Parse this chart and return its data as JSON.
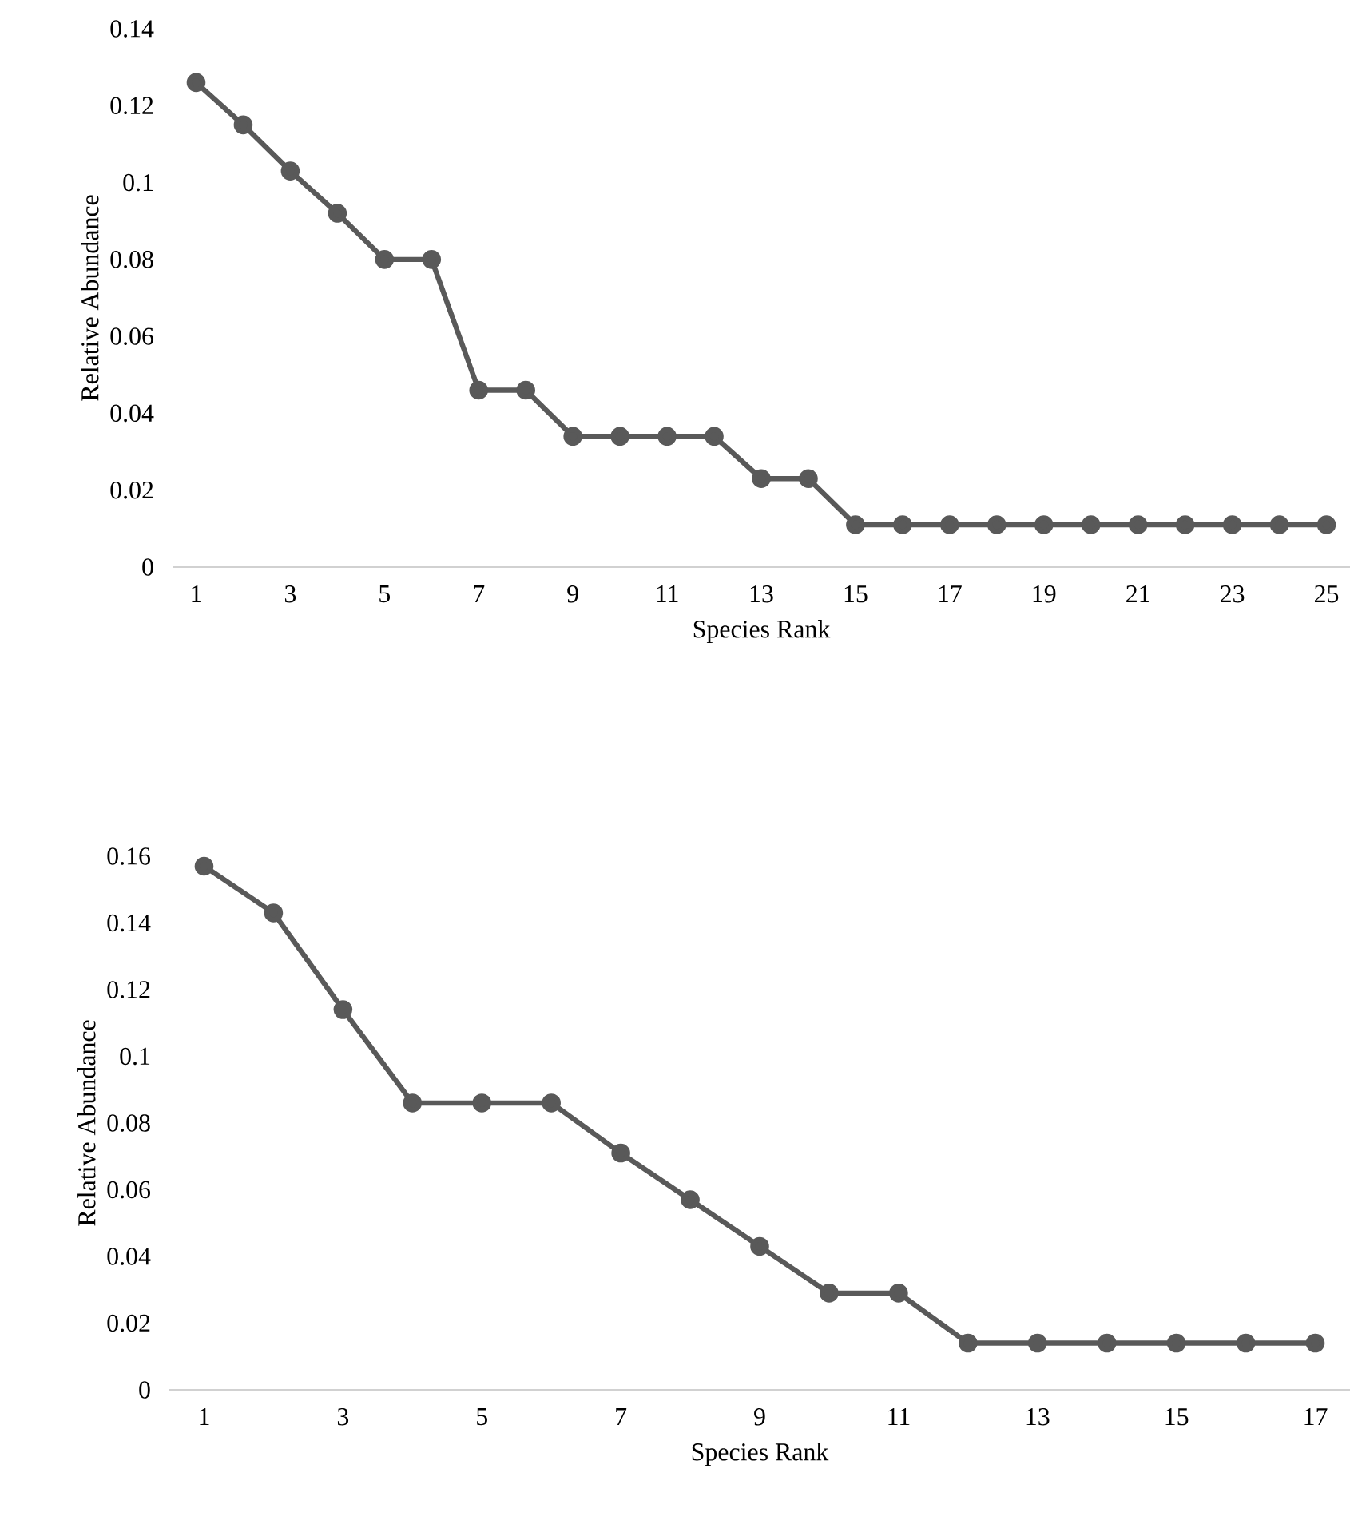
{
  "chart_data": [
    {
      "type": "line",
      "xlabel": "Species Rank",
      "ylabel": "Relative Abundance",
      "categories": [
        "1",
        null,
        "3",
        null,
        "5",
        null,
        "7",
        null,
        "9",
        null,
        "11",
        null,
        "13",
        null,
        "15",
        null,
        "17",
        null,
        "19",
        null,
        "21",
        null,
        "23",
        null,
        "25"
      ],
      "values": [
        0.126,
        0.115,
        0.103,
        0.092,
        0.08,
        0.08,
        0.046,
        0.046,
        0.034,
        0.034,
        0.034,
        0.034,
        0.023,
        0.023,
        0.011,
        0.011,
        0.011,
        0.011,
        0.011,
        0.011,
        0.011,
        0.011,
        0.011,
        0.011,
        0.011
      ],
      "color": "#595959",
      "marker": "circle",
      "ylim": [
        0,
        0.14
      ],
      "yticks": [
        0,
        0.02,
        0.04,
        0.06,
        0.08,
        0.1,
        0.12,
        0.14
      ]
    },
    {
      "type": "line",
      "xlabel": "Species Rank",
      "ylabel": "Relative Abundance",
      "categories": [
        "1",
        null,
        "3",
        null,
        "5",
        null,
        "7",
        null,
        "9",
        null,
        "11",
        null,
        "13",
        null,
        "15",
        null,
        "17"
      ],
      "values": [
        0.157,
        0.143,
        0.114,
        0.086,
        0.086,
        0.086,
        0.071,
        0.057,
        0.043,
        0.029,
        0.029,
        0.014,
        0.014,
        0.014,
        0.014,
        0.014,
        0.014
      ],
      "color": "#595959",
      "marker": "circle",
      "ylim": [
        0,
        0.16
      ],
      "yticks": [
        0,
        0.02,
        0.04,
        0.06,
        0.08,
        0.1,
        0.12,
        0.14,
        0.16
      ]
    }
  ]
}
